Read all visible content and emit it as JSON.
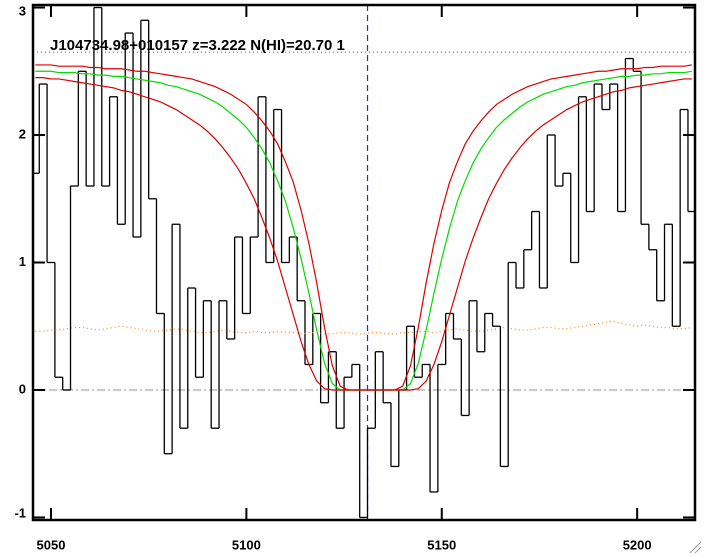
{
  "chart_data": {
    "type": "line",
    "title": "J104734.98+010157 z=3.222 N(HI)=20.70 1",
    "x": [
      5046,
      5048,
      5050,
      5052,
      5054,
      5056,
      5058,
      5060,
      5062,
      5064,
      5066,
      5068,
      5070,
      5072,
      5074,
      5076,
      5078,
      5080,
      5082,
      5084,
      5086,
      5088,
      5090,
      5092,
      5094,
      5096,
      5098,
      5100,
      5102,
      5104,
      5106,
      5108,
      5110,
      5112,
      5114,
      5116,
      5118,
      5120,
      5122,
      5124,
      5126,
      5128,
      5130,
      5132,
      5134,
      5136,
      5138,
      5140,
      5142,
      5144,
      5146,
      5148,
      5150,
      5152,
      5154,
      5156,
      5158,
      5160,
      5162,
      5164,
      5166,
      5168,
      5170,
      5172,
      5174,
      5176,
      5178,
      5180,
      5182,
      5184,
      5186,
      5188,
      5190,
      5192,
      5194,
      5196,
      5198,
      5200,
      5202,
      5204,
      5206,
      5208,
      5210,
      5212,
      5214
    ],
    "series": [
      {
        "color": "#000000",
        "steps": true,
        "style": "solid",
        "values": [
          1.7,
          2.4,
          1.0,
          0.1,
          0.0,
          1.6,
          2.5,
          1.6,
          3.0,
          1.6,
          2.3,
          1.3,
          2.8,
          1.2,
          2.9,
          1.5,
          0.6,
          -0.5,
          1.3,
          -0.3,
          0.8,
          0.1,
          0.7,
          -0.3,
          0.7,
          0.4,
          1.2,
          0.6,
          1.2,
          2.3,
          1.0,
          2.2,
          1.0,
          1.2,
          0.7,
          0.2,
          0.6,
          -0.1,
          0.3,
          -0.3,
          0.1,
          0.2,
          -1.0,
          -0.3,
          0.3,
          -0.1,
          -0.6,
          0.0,
          0.5,
          0.1,
          0.2,
          -0.8,
          0.2,
          0.6,
          0.4,
          -0.2,
          0.7,
          0.3,
          0.6,
          0.5,
          -0.6,
          1.0,
          0.8,
          1.1,
          1.4,
          0.8,
          2.0,
          1.6,
          1.7,
          1.0,
          2.3,
          1.4,
          2.4,
          2.2,
          2.4,
          1.4,
          2.6,
          2.5,
          1.3,
          1.1,
          0.7,
          1.3,
          0.5,
          2.2,
          1.4
        ]
      },
      {
        "color": "#ff8c1a",
        "steps": false,
        "style": "dotted",
        "values": [
          0.46,
          0.46,
          0.47,
          0.47,
          0.48,
          0.49,
          0.49,
          0.48,
          0.47,
          0.48,
          0.49,
          0.5,
          0.49,
          0.48,
          0.47,
          0.46,
          0.46,
          0.47,
          0.48,
          0.47,
          0.46,
          0.45,
          0.45,
          0.46,
          0.47,
          0.46,
          0.45,
          0.45,
          0.46,
          0.45,
          0.45,
          0.46,
          0.45,
          0.45,
          0.44,
          0.45,
          0.45,
          0.44,
          0.44,
          0.45,
          0.45,
          0.44,
          0.44,
          0.45,
          0.45,
          0.44,
          0.44,
          0.45,
          0.45,
          0.46,
          0.46,
          0.45,
          0.46,
          0.47,
          0.48,
          0.47,
          0.46,
          0.46,
          0.47,
          0.48,
          0.49,
          0.48,
          0.47,
          0.47,
          0.48,
          0.49,
          0.49,
          0.48,
          0.48,
          0.49,
          0.5,
          0.51,
          0.52,
          0.53,
          0.54,
          0.52,
          0.51,
          0.5,
          0.51,
          0.5,
          0.49,
          0.49,
          0.48,
          0.48,
          0.49
        ]
      },
      {
        "color": "#00dd00",
        "steps": false,
        "style": "solid",
        "values": [
          2.5,
          2.5,
          2.5,
          2.49,
          2.49,
          2.49,
          2.48,
          2.48,
          2.47,
          2.47,
          2.46,
          2.46,
          2.45,
          2.44,
          2.43,
          2.42,
          2.41,
          2.39,
          2.38,
          2.36,
          2.34,
          2.32,
          2.29,
          2.26,
          2.22,
          2.17,
          2.12,
          2.06,
          1.98,
          1.89,
          1.78,
          1.64,
          1.48,
          1.27,
          1.03,
          0.76,
          0.47,
          0.21,
          0.05,
          0,
          0,
          0,
          0,
          0,
          0,
          0,
          0,
          0,
          0.05,
          0.21,
          0.47,
          0.76,
          1.03,
          1.27,
          1.48,
          1.64,
          1.78,
          1.89,
          1.98,
          2.06,
          2.12,
          2.17,
          2.22,
          2.26,
          2.29,
          2.32,
          2.34,
          2.36,
          2.38,
          2.39,
          2.41,
          2.42,
          2.43,
          2.44,
          2.45,
          2.46,
          2.46,
          2.47,
          2.47,
          2.48,
          2.48,
          2.49,
          2.49,
          2.49,
          2.5
        ]
      },
      {
        "color": "#dd0000",
        "steps": false,
        "style": "solid",
        "values": [
          2.55,
          2.55,
          2.55,
          2.54,
          2.54,
          2.54,
          2.54,
          2.53,
          2.53,
          2.52,
          2.52,
          2.52,
          2.51,
          2.5,
          2.5,
          2.49,
          2.48,
          2.47,
          2.46,
          2.45,
          2.44,
          2.42,
          2.4,
          2.38,
          2.35,
          2.32,
          2.28,
          2.24,
          2.18,
          2.11,
          2.03,
          1.93,
          1.79,
          1.63,
          1.41,
          1.15,
          0.84,
          0.49,
          0.19,
          0.03,
          0,
          0,
          0,
          0,
          0,
          0,
          0,
          0.03,
          0.19,
          0.49,
          0.84,
          1.15,
          1.41,
          1.63,
          1.79,
          1.93,
          2.03,
          2.11,
          2.18,
          2.24,
          2.28,
          2.32,
          2.35,
          2.38,
          2.4,
          2.42,
          2.44,
          2.45,
          2.46,
          2.47,
          2.48,
          2.49,
          2.5,
          2.5,
          2.51,
          2.52,
          2.52,
          2.52,
          2.53,
          2.53,
          2.54,
          2.54,
          2.54,
          2.54,
          2.55
        ]
      },
      {
        "color": "#dd0000",
        "steps": false,
        "style": "solid",
        "values": [
          2.45,
          2.45,
          2.44,
          2.44,
          2.43,
          2.42,
          2.41,
          2.4,
          2.39,
          2.38,
          2.37,
          2.35,
          2.34,
          2.32,
          2.3,
          2.28,
          2.26,
          2.23,
          2.2,
          2.16,
          2.12,
          2.08,
          2.03,
          1.97,
          1.9,
          1.82,
          1.73,
          1.62,
          1.5,
          1.35,
          1.19,
          1.01,
          0.8,
          0.59,
          0.38,
          0.2,
          0.07,
          0.01,
          0,
          0,
          0,
          0,
          0,
          0,
          0,
          0,
          0,
          0,
          0,
          0.01,
          0.07,
          0.2,
          0.38,
          0.59,
          0.8,
          1.01,
          1.19,
          1.35,
          1.5,
          1.62,
          1.73,
          1.82,
          1.9,
          1.97,
          2.03,
          2.08,
          2.12,
          2.16,
          2.2,
          2.23,
          2.26,
          2.28,
          2.3,
          2.32,
          2.34,
          2.35,
          2.37,
          2.38,
          2.39,
          2.4,
          2.41,
          2.42,
          2.43,
          2.44,
          2.44
        ]
      }
    ],
    "reference_lines": [
      {
        "axis": "y",
        "value": 0,
        "color": "#aaaaaa",
        "style": "dashdot"
      },
      {
        "axis": "y",
        "value": 2.65,
        "color": "#cc33cc",
        "style": "dotted"
      },
      {
        "axis": "x",
        "value": 5131,
        "color": "#1f2fd0",
        "style": "dashed"
      }
    ],
    "xlim": [
      5045.4,
      5214.8
    ],
    "ylim": [
      -1.02,
      3.02
    ],
    "xticks": [
      5050,
      5100,
      5150,
      5200
    ],
    "yticks": [
      -1,
      0,
      1,
      2,
      3
    ]
  }
}
